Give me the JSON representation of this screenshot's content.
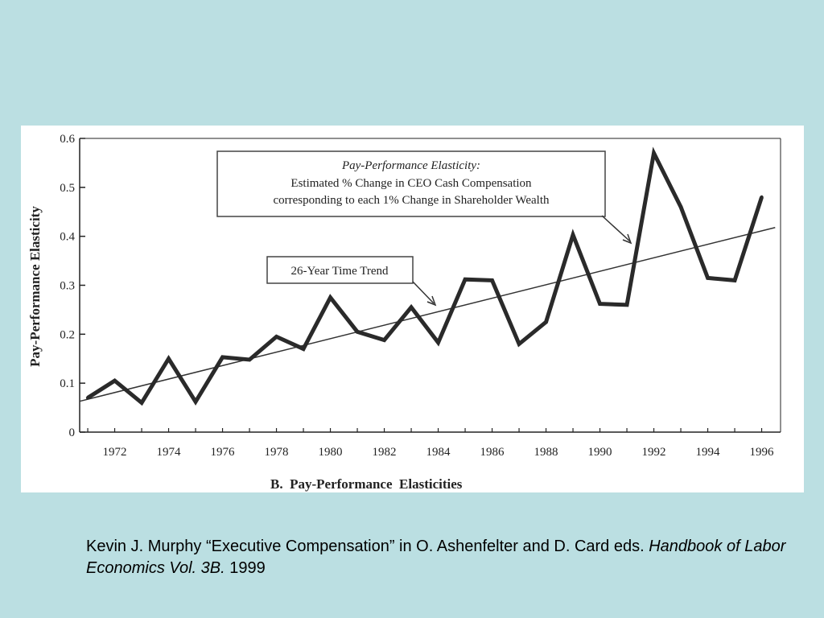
{
  "chart_data": {
    "type": "line",
    "title": "",
    "subtitle": "B.  Pay-Performance  Elasticities",
    "xlabel": "",
    "ylabel": "Pay-Performance Elasticity",
    "xlim": [
      1970.7,
      1996.7
    ],
    "ylim": [
      0,
      0.6
    ],
    "y_ticks": [
      0,
      0.1,
      0.2,
      0.3,
      0.4,
      0.5,
      0.6
    ],
    "y_tick_labels": [
      "0",
      "0.1",
      "0.2",
      "0.3",
      "0.4",
      "0.5",
      "0.6"
    ],
    "x_tick_labels": [
      "1972",
      "1974",
      "1976",
      "1978",
      "1980",
      "1982",
      "1984",
      "1986",
      "1988",
      "1990",
      "1992",
      "1994",
      "1996"
    ],
    "grid": false,
    "series": [
      {
        "name": "",
        "x": [
          1971,
          1972,
          1973,
          1974,
          1975,
          1976,
          1977,
          1978,
          1979,
          1980,
          1981,
          1982,
          1983,
          1984,
          1985,
          1986,
          1987,
          1988,
          1989,
          1990,
          1991,
          1992,
          1993,
          1994,
          1995,
          1996
        ],
        "values": [
          0.07,
          0.105,
          0.06,
          0.15,
          0.062,
          0.153,
          0.148,
          0.195,
          0.17,
          0.275,
          0.205,
          0.188,
          0.255,
          0.183,
          0.312,
          0.31,
          0.18,
          0.225,
          0.403,
          0.262,
          0.26,
          0.57,
          0.46,
          0.315,
          0.31,
          0.48
        ]
      }
    ],
    "trend": {
      "x": [
        1970.7,
        1996.5
      ],
      "values": [
        0.063,
        0.418
      ]
    },
    "annotations": {
      "elasticity_box": {
        "title": "Pay-Performance Elasticity:",
        "line1": "Estimated % Change in CEO Cash Compensation",
        "line2": "corresponding to each 1% Change in Shareholder Wealth"
      },
      "trend_box": "26-Year Time Trend"
    }
  },
  "caption": {
    "part1": "Kevin J. Murphy “Executive Compensation” in O. Ashenfelter and D. Card eds.",
    "italic": "Handbook of Labor Economics Vol. 3B.",
    "part2": "1999"
  }
}
